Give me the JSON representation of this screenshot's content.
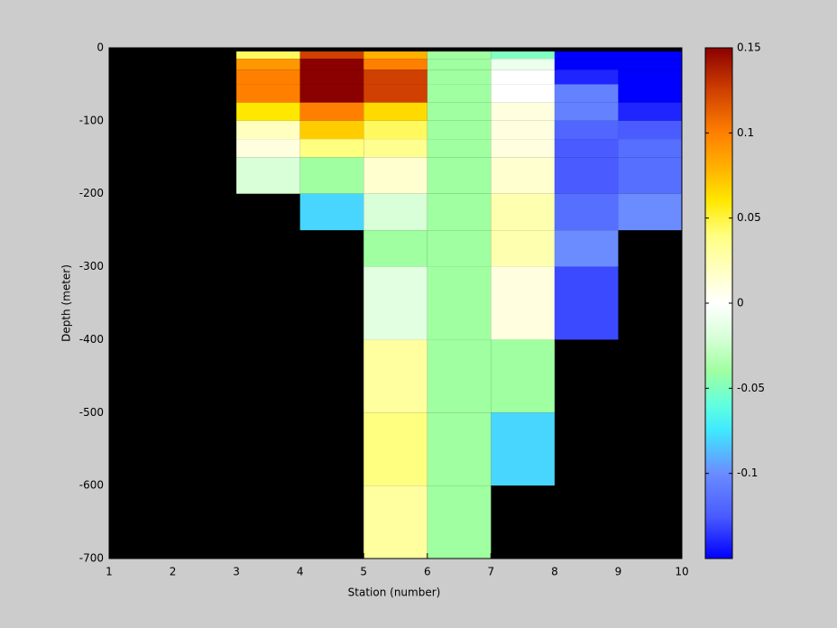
{
  "chart_data": {
    "type": "heatmap",
    "xlabel": "Station (number)",
    "ylabel": "Depth (meter)",
    "x": [
      3,
      4,
      5,
      6,
      7,
      8,
      9,
      10
    ],
    "y": [
      -5,
      -15,
      -30,
      -50,
      -75,
      -100,
      -125,
      -150,
      -200,
      -250,
      -300,
      -400,
      -500,
      -600,
      -700
    ],
    "values": [
      [
        0.045,
        0.125,
        0.08,
        -0.04,
        -0.05,
        -0.15,
        -0.15
      ],
      [
        0.09,
        0.15,
        0.1,
        -0.04,
        -0.01,
        -0.15,
        -0.15
      ],
      [
        0.1,
        0.15,
        0.125,
        -0.04,
        0,
        -0.14,
        -0.15
      ],
      [
        0.1,
        0.15,
        0.125,
        -0.04,
        0,
        -0.105,
        -0.15
      ],
      [
        0.06,
        0.1,
        0.065,
        -0.04,
        0.01,
        -0.105,
        -0.14
      ],
      [
        0.02,
        0.07,
        0.045,
        -0.04,
        0.01,
        -0.12,
        -0.125
      ],
      [
        0.01,
        0.04,
        0.035,
        -0.04,
        0.01,
        -0.125,
        -0.115
      ],
      [
        -0.02,
        -0.04,
        0.015,
        -0.04,
        0.015,
        -0.125,
        -0.115
      ],
      [
        null,
        -0.08,
        -0.02,
        -0.04,
        0.025,
        -0.115,
        -0.1
      ],
      [
        null,
        null,
        -0.04,
        -0.04,
        0.025,
        -0.1,
        null
      ],
      [
        null,
        null,
        -0.015,
        -0.04,
        0.01,
        -0.13,
        null
      ],
      [
        null,
        null,
        0.03,
        -0.04,
        -0.04,
        null,
        null
      ],
      [
        null,
        null,
        0.04,
        -0.04,
        -0.08,
        null,
        null
      ],
      [
        null,
        null,
        0.03,
        -0.04,
        null,
        null,
        null
      ]
    ],
    "xlim": [
      1,
      10
    ],
    "xticks": [
      1,
      2,
      3,
      4,
      5,
      6,
      7,
      8,
      9,
      10
    ],
    "ylim": [
      -700,
      0
    ],
    "yticks": [
      -700,
      -600,
      -500,
      -400,
      -300,
      -200,
      -100,
      0
    ],
    "clim": [
      -0.15,
      0.15
    ],
    "cticks": [
      -0.1,
      -0.05,
      0,
      0.05,
      0.1,
      0.15
    ],
    "background": "#000000",
    "colormap": [
      {
        "value": -0.15,
        "color": "#0000ff"
      },
      {
        "value": -0.125,
        "color": "#4a5cff"
      },
      {
        "value": -0.1,
        "color": "#6a8cff"
      },
      {
        "value": -0.075,
        "color": "#40e8ff"
      },
      {
        "value": -0.06,
        "color": "#60ffe0"
      },
      {
        "value": -0.04,
        "color": "#a0ffa0"
      },
      {
        "value": -0.02,
        "color": "#d8ffd8"
      },
      {
        "value": 0,
        "color": "#ffffff"
      },
      {
        "value": 0.02,
        "color": "#ffffc0"
      },
      {
        "value": 0.04,
        "color": "#ffff80"
      },
      {
        "value": 0.06,
        "color": "#ffe800"
      },
      {
        "value": 0.08,
        "color": "#ffb000"
      },
      {
        "value": 0.1,
        "color": "#ff8000"
      },
      {
        "value": 0.125,
        "color": "#d04000"
      },
      {
        "value": 0.15,
        "color": "#8b0000"
      }
    ]
  }
}
